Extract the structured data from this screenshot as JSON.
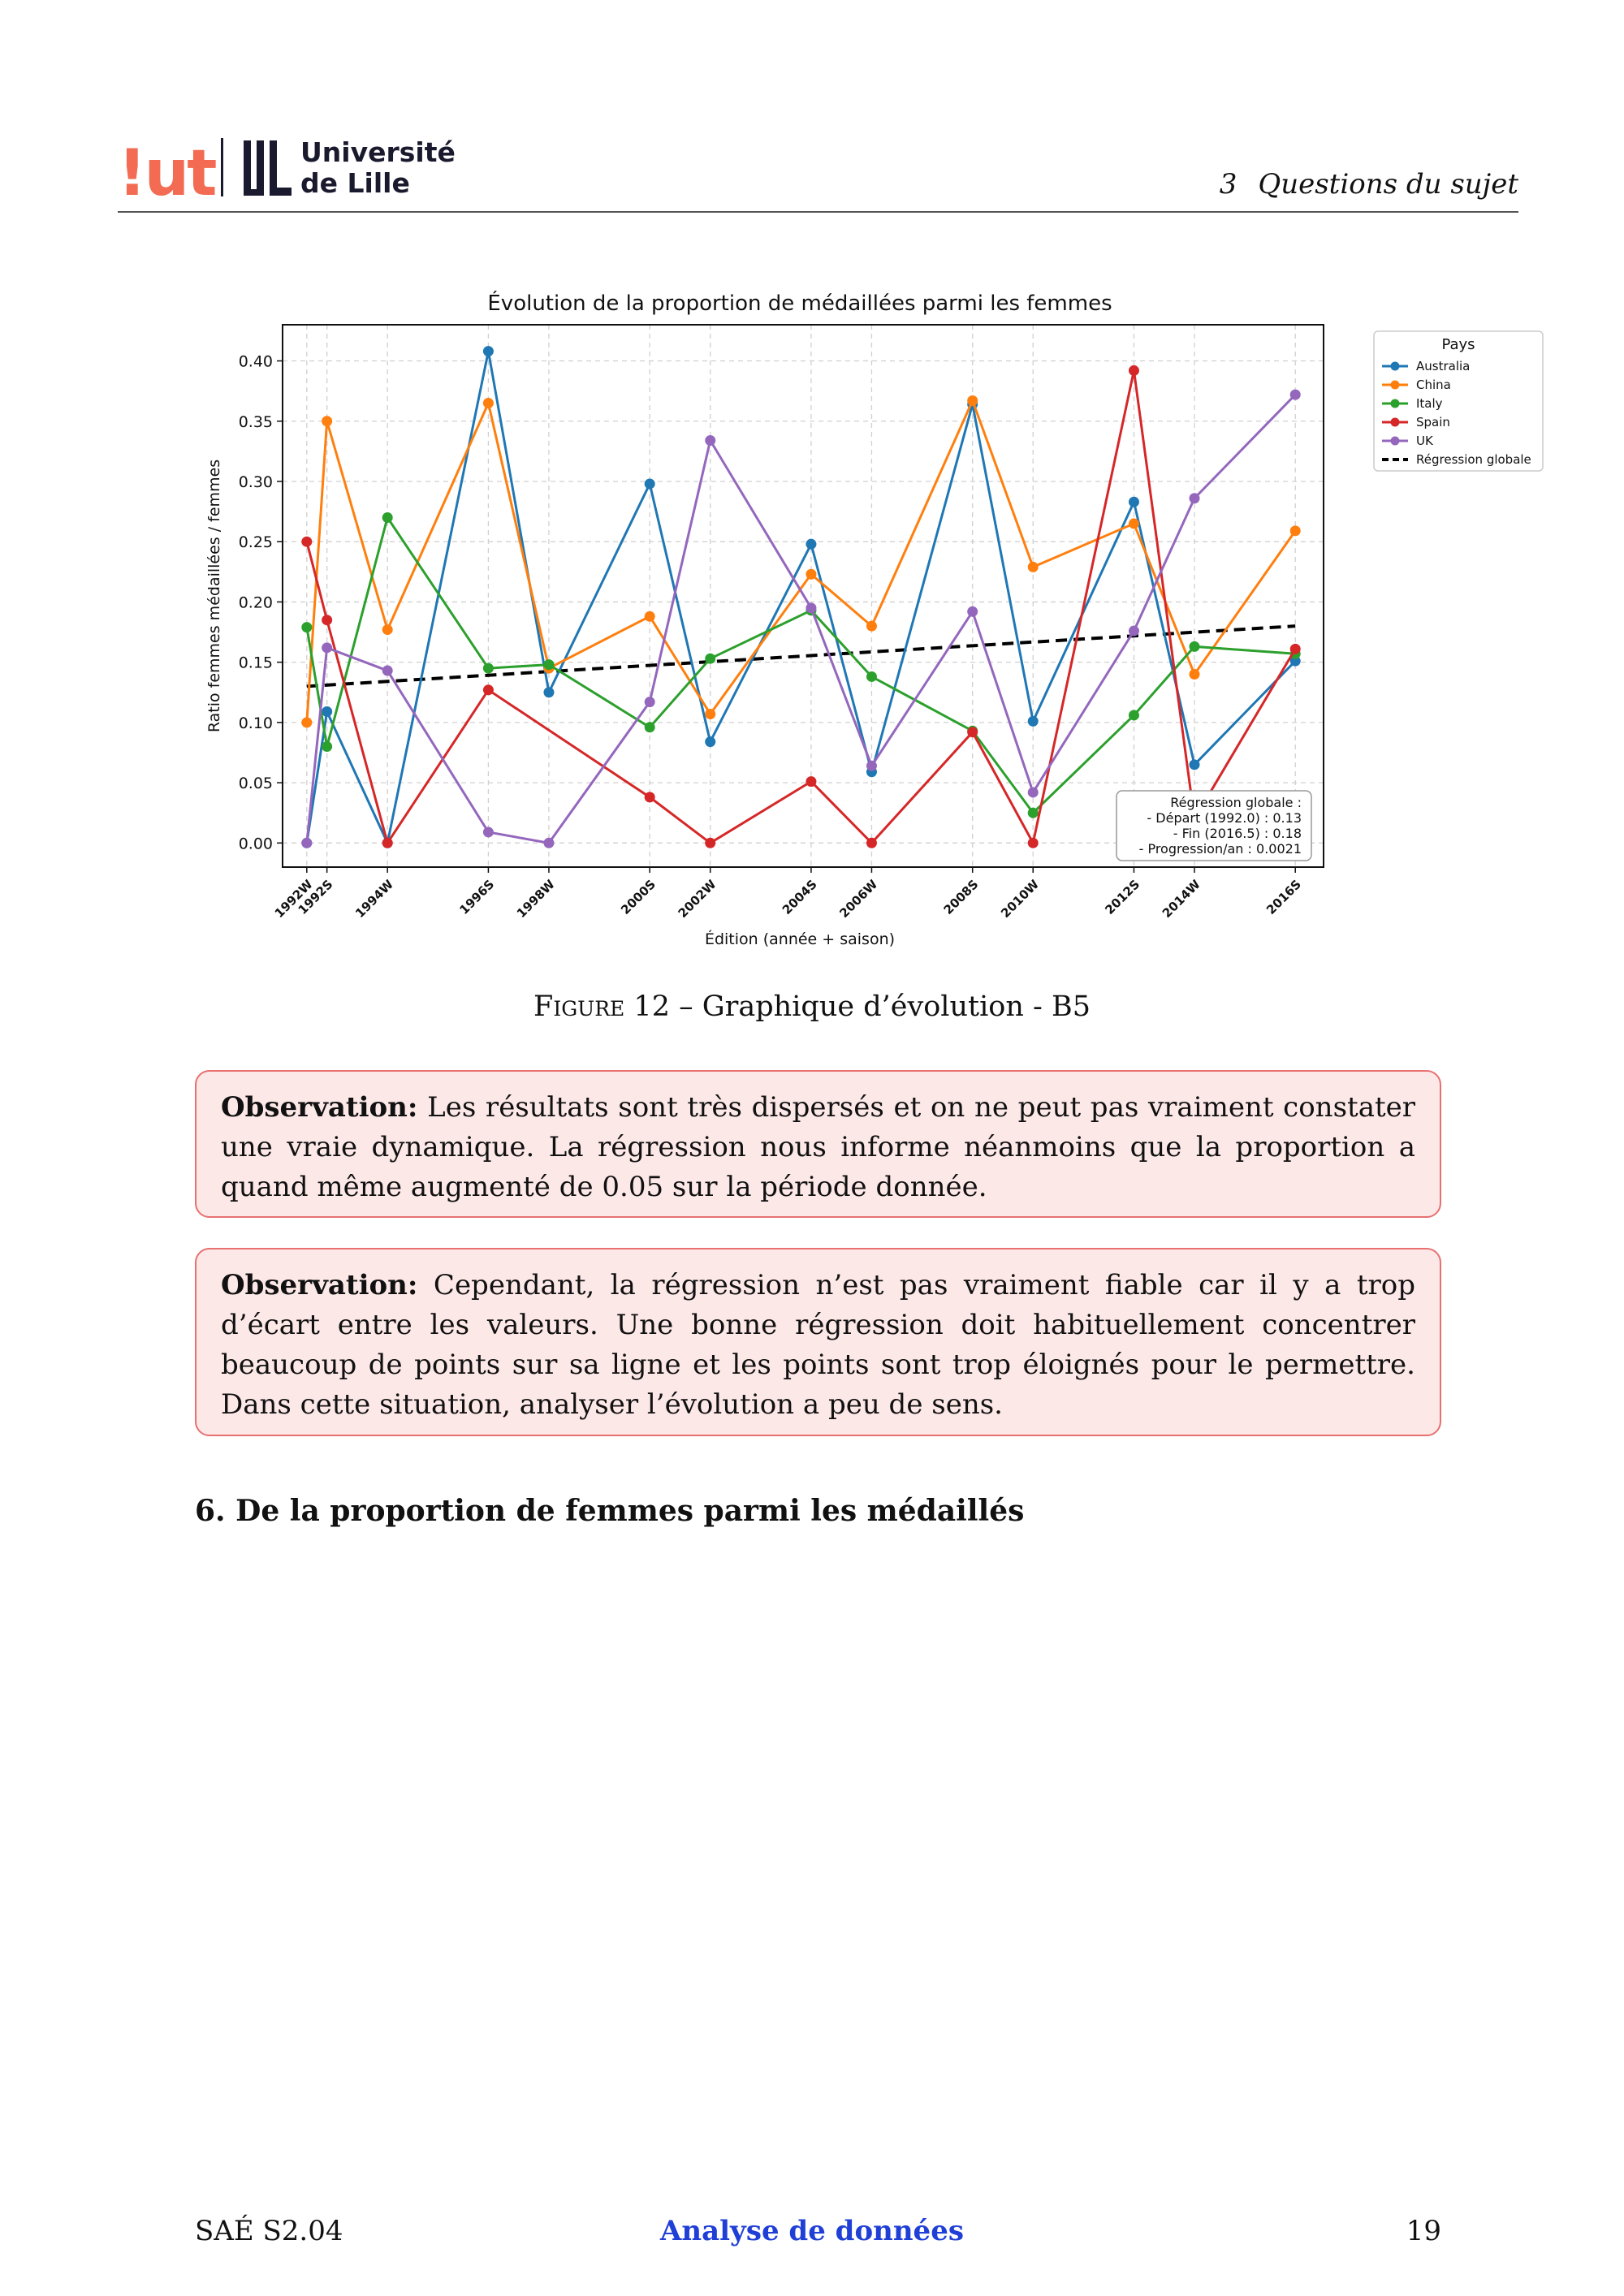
{
  "header": {
    "logo_iut": "!ut",
    "logo_univ_line1": "Université",
    "logo_univ_line2": "de Lille",
    "section_number": "3",
    "section_title": "Questions du sujet"
  },
  "chart_data": {
    "type": "line",
    "title": "Évolution de la proportion de médaillées parmi les femmes",
    "xlabel": "Édition (année + saison)",
    "ylabel": "Ratio femmes médaillées / femmes",
    "ylim": [
      -0.02,
      0.43
    ],
    "yticks": [
      0.0,
      0.05,
      0.1,
      0.15,
      0.2,
      0.25,
      0.3,
      0.35,
      0.4
    ],
    "ytick_labels": [
      "0.00",
      "0.05",
      "0.10",
      "0.15",
      "0.20",
      "0.25",
      "0.30",
      "0.35",
      "0.40"
    ],
    "x": [
      1992.0,
      1992.5,
      1994.0,
      1996.5,
      1998.0,
      2000.5,
      2002.0,
      2004.5,
      2006.0,
      2008.5,
      2010.0,
      2012.5,
      2014.0,
      2016.5
    ],
    "xtick_labels": [
      "1992W",
      "1992S",
      "1994W",
      "1996S",
      "1998W",
      "2000S",
      "2002W",
      "2004S",
      "2006W",
      "2008S",
      "2010W",
      "2012S",
      "2014W",
      "2016S"
    ],
    "xlim": [
      1991.4,
      2017.2
    ],
    "grid": true,
    "legend_title": "Pays",
    "legend_placement": "outside-right",
    "series": [
      {
        "name": "Australia",
        "color": "#1f77b4",
        "values": [
          0.0,
          0.109,
          0.0,
          0.408,
          0.125,
          0.298,
          0.084,
          0.248,
          0.059,
          0.364,
          0.101,
          0.283,
          0.065,
          0.151
        ]
      },
      {
        "name": "China",
        "color": "#ff7f0e",
        "values": [
          0.1,
          0.35,
          0.177,
          0.365,
          0.145,
          0.188,
          0.107,
          0.223,
          0.18,
          0.367,
          0.229,
          0.265,
          0.14,
          0.259
        ]
      },
      {
        "name": "Italy",
        "color": "#2ca02c",
        "values": [
          0.179,
          0.08,
          0.27,
          0.145,
          0.148,
          0.096,
          0.153,
          0.193,
          0.138,
          0.093,
          0.025,
          0.106,
          0.163,
          0.157
        ]
      },
      {
        "name": "Spain",
        "color": "#d62728",
        "values": [
          0.25,
          0.185,
          0.0,
          0.127,
          null,
          0.038,
          0.0,
          0.051,
          0.0,
          0.092,
          0.0,
          0.392,
          0.02,
          0.161
        ]
      },
      {
        "name": "UK",
        "color": "#9467bd",
        "values": [
          0.0,
          0.162,
          0.143,
          0.009,
          0.0,
          0.117,
          0.334,
          0.195,
          0.064,
          0.192,
          0.042,
          0.176,
          0.286,
          0.372
        ]
      }
    ],
    "regression": {
      "name": "Régression globale",
      "color": "#000000",
      "x": [
        1992.0,
        2016.5
      ],
      "y": [
        0.13,
        0.18
      ]
    },
    "annotation": {
      "title": "Régression globale :",
      "line1": "- Départ (1992.0) : 0.13",
      "line2": "- Fin (2016.5) : 0.18",
      "line3": "- Progression/an : 0.0021"
    }
  },
  "figure": {
    "label": "Figure 12",
    "caption": " – Graphique d’évolution - B5"
  },
  "observations": [
    {
      "label": "Observation:",
      "text": " Les résultats sont très dispersés et on ne peut pas vraiment constater une vraie dynamique. La régression nous informe néanmoins que la proportion a quand même augmenté de 0.05 sur la période donnée."
    },
    {
      "label": "Observation:",
      "text": " Cependant, la régression n’est pas vraiment fiable car il y a trop d’écart entre les valeurs. Une bonne régression doit habituellement concentrer beaucoup de points sur sa ligne et les points sont trop éloignés pour le permettre. Dans cette situation, analyser l’évolution a peu de sens."
    }
  ],
  "section": {
    "title": "6. De la proportion de femmes parmi les médaillés"
  },
  "footer": {
    "left": "SAÉ S2.04",
    "center": "Analyse de données",
    "page": "19"
  }
}
